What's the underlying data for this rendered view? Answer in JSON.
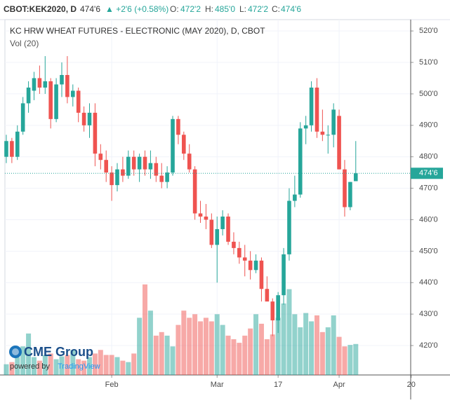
{
  "header": {
    "symbol": "CBOT:KEK2020, D",
    "price": "474'6",
    "change": "▲ +2'6 (+0.58%)",
    "o_label": "O:",
    "open": "472'2",
    "h_label": "H:",
    "high": "485'0",
    "l_label": "L:",
    "low": "472'2",
    "c_label": "C:",
    "close": "474'6"
  },
  "logo": {
    "name": "CME Group",
    "powered": "powered by",
    "brand": "TradingView"
  },
  "chart_data": {
    "type": "candlestick",
    "title": "KC HRW WHEAT FUTURES - ELECTRONIC (MAY 2020), D, CBOT",
    "subtitle": "Vol (20)",
    "up_color": "#26a69a",
    "down_color": "#ef5350",
    "xlim": [
      -0.25,
      72.9
    ],
    "xticks": [
      {
        "value": 19,
        "label": "Feb"
      },
      {
        "value": 38,
        "label": "Mar"
      },
      {
        "value": 49,
        "label": "17"
      },
      {
        "value": 60,
        "label": "Apr"
      },
      {
        "value": 73,
        "label": "20"
      }
    ],
    "ylim": [
      410.65,
      523.6
    ],
    "yticks": [
      {
        "value": 420,
        "label": "420'0"
      },
      {
        "value": 430,
        "label": "430'0"
      },
      {
        "value": 440,
        "label": "440'0"
      },
      {
        "value": 450,
        "label": "450'0"
      },
      {
        "value": 460,
        "label": "460'0"
      },
      {
        "value": 470,
        "label": "470'0"
      },
      {
        "value": 480,
        "label": "480'0"
      },
      {
        "value": 490,
        "label": "490'0"
      },
      {
        "value": 500,
        "label": "500'0"
      },
      {
        "value": 510,
        "label": "510'0"
      },
      {
        "value": 520,
        "label": "520'0"
      }
    ],
    "last": {
      "value": 474.75,
      "label": "474'6"
    },
    "grid": true,
    "vlim": [
      0,
      50000
    ],
    "open": [
      480,
      485,
      480,
      488,
      497,
      501,
      505,
      502,
      504,
      492,
      503,
      506,
      499,
      501,
      494,
      490,
      494,
      481,
      479,
      475,
      471,
      476,
      474,
      480,
      476,
      480,
      476,
      478,
      474,
      472,
      475,
      492,
      487,
      481,
      476,
      462,
      461,
      460,
      452,
      457,
      461,
      453,
      451,
      448,
      447,
      444,
      447,
      438,
      434,
      428,
      436,
      449,
      466,
      468,
      489,
      490,
      502,
      488,
      487,
      487,
      493,
      476,
      464,
      472.25
    ],
    "high": [
      487,
      486,
      490,
      499,
      504,
      507,
      509,
      512,
      505,
      505,
      510,
      512,
      503,
      502,
      496,
      497,
      497,
      484,
      482,
      477,
      478,
      480,
      482,
      482,
      481,
      482,
      482,
      480,
      478,
      477,
      493,
      493,
      488,
      484,
      477,
      466,
      465,
      462,
      461,
      463,
      462,
      456,
      453,
      452,
      450,
      449,
      448,
      442,
      435,
      437,
      451,
      470,
      474,
      491,
      493,
      504,
      505,
      495,
      490,
      497,
      495,
      479,
      472,
      485
    ],
    "low": [
      478,
      478,
      479,
      487,
      494,
      498,
      500,
      500,
      489,
      491,
      499,
      497,
      496,
      491,
      488,
      486,
      477,
      476,
      472,
      466,
      469,
      472,
      473,
      474,
      472,
      474,
      473,
      472,
      470,
      470,
      474,
      484,
      479,
      475,
      460,
      459,
      457,
      451,
      440,
      455,
      452,
      449,
      446,
      442,
      441,
      443,
      434,
      435,
      423,
      424,
      433,
      447,
      464,
      467,
      484,
      488,
      486,
      485,
      481,
      483,
      476,
      461,
      463,
      472.25
    ],
    "close": [
      485,
      480,
      488,
      497,
      502,
      505,
      502,
      504,
      492,
      503,
      506,
      499,
      501,
      494,
      490,
      494,
      481,
      479,
      475,
      471,
      476,
      474,
      480,
      476,
      480,
      476,
      478,
      474,
      472,
      475,
      492,
      487,
      481,
      476,
      462,
      461,
      460,
      452,
      457,
      461,
      453,
      451,
      448,
      447,
      444,
      447,
      438,
      434,
      428,
      436,
      449,
      466,
      468,
      489,
      490,
      502,
      488,
      487,
      487,
      495,
      476,
      464,
      472,
      474.75
    ],
    "volume": [
      4500,
      5400,
      7500,
      12000,
      17400,
      7500,
      6000,
      8400,
      9000,
      6600,
      7800,
      8400,
      10500,
      6600,
      6000,
      7500,
      9000,
      10500,
      8400,
      8400,
      7500,
      6000,
      5400,
      9000,
      24000,
      38000,
      27000,
      16500,
      18000,
      16500,
      12000,
      21000,
      27000,
      24000,
      25500,
      22500,
      24000,
      22500,
      25500,
      21000,
      16500,
      15000,
      13500,
      16500,
      19500,
      25500,
      21500,
      15000,
      17000,
      24000,
      30000,
      36000,
      25500,
      20000,
      26000,
      22500,
      25000,
      18000,
      20000,
      25000,
      16000,
      12000,
      12600,
      13000
    ]
  }
}
